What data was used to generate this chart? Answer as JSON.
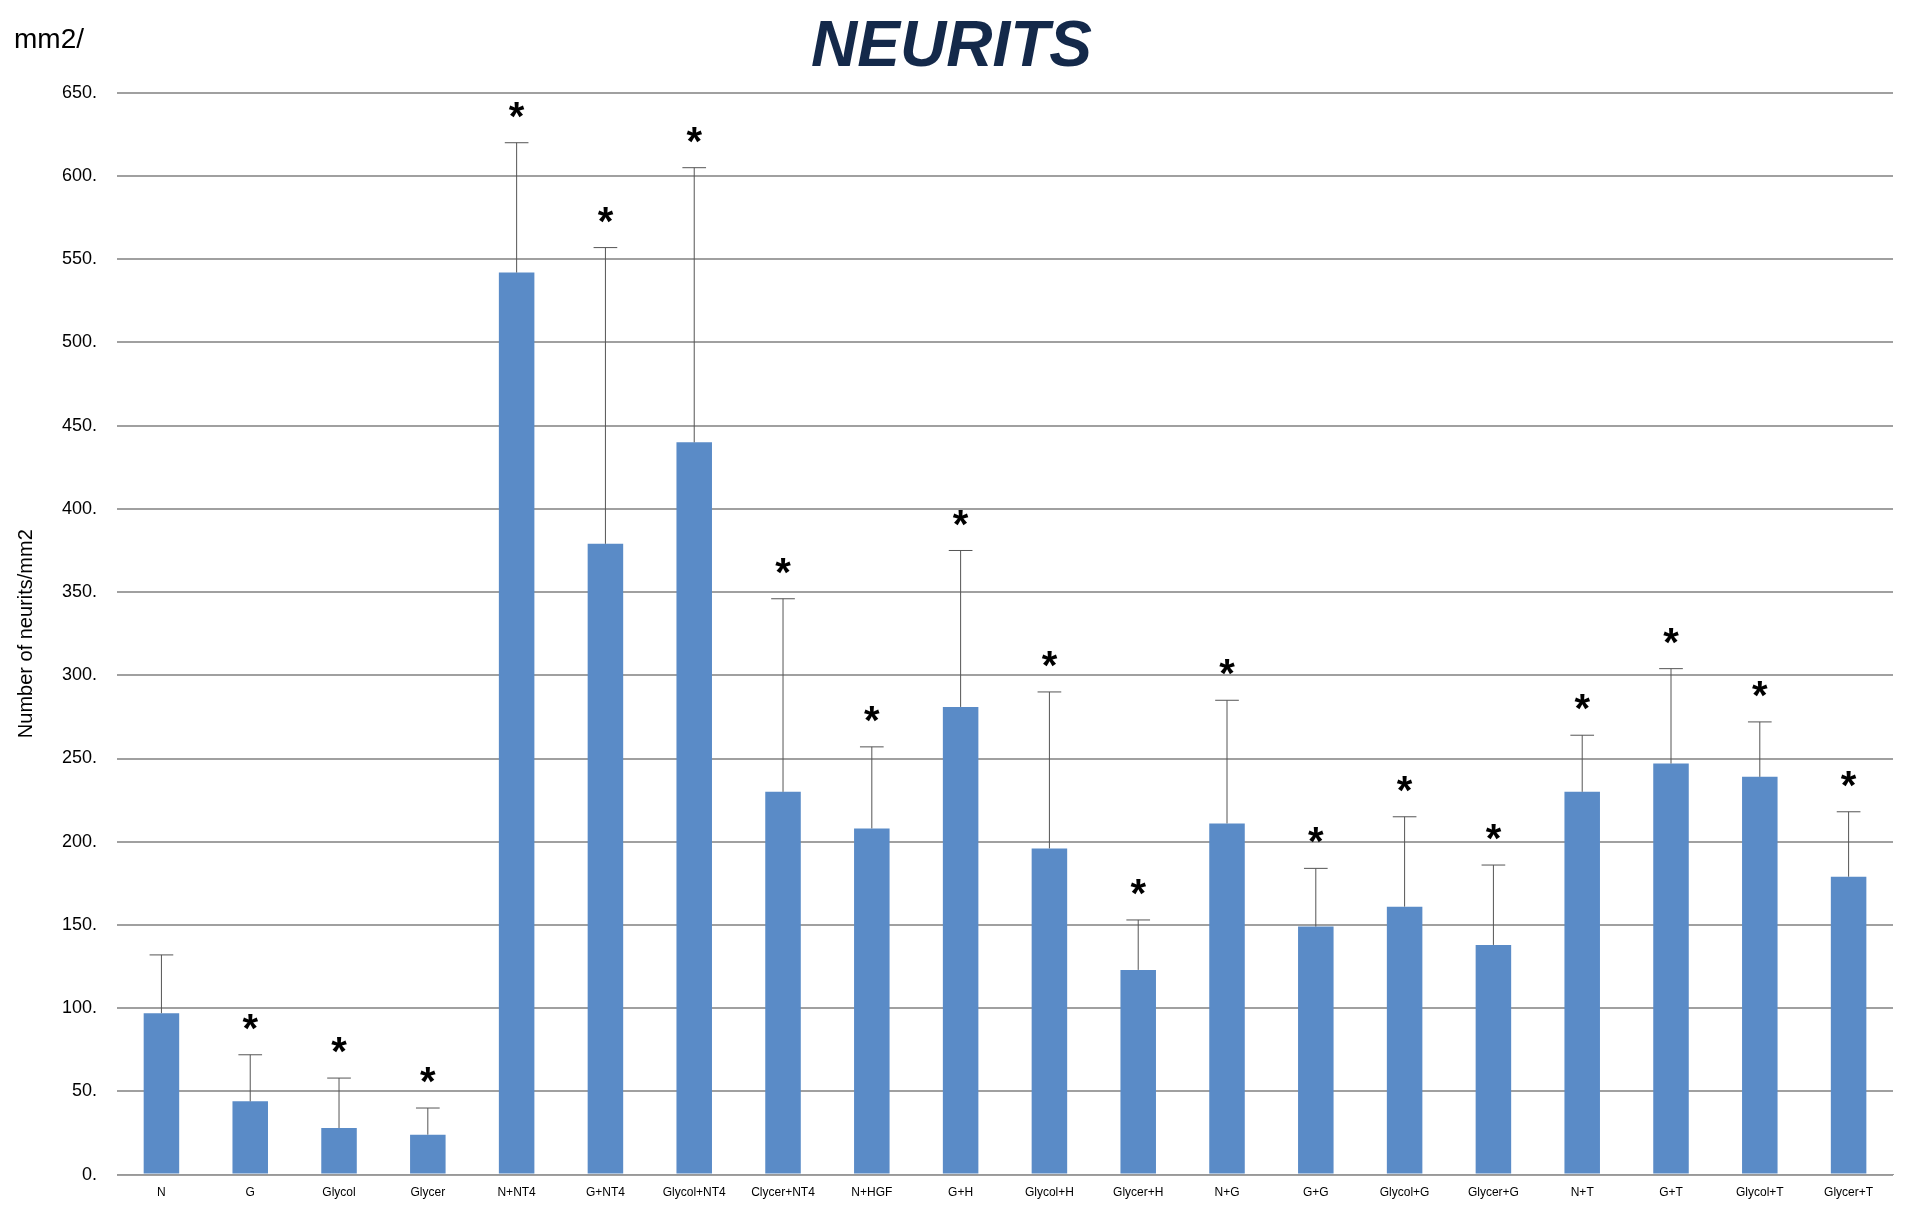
{
  "chart_data": {
    "type": "bar",
    "title": "NEURITS",
    "ylabel": "Number of neurits/mm2",
    "categories": [
      "N",
      "G",
      "Glycol",
      "Glycer",
      "N+NT4",
      "G+NT4",
      "Glycol+NT4",
      "Clycer+NT4",
      "N+HGF",
      "G+H",
      "Glycol+H",
      "Glycer+H",
      "N+G",
      "G+G",
      "Glycol+G",
      "Glycer+G",
      "N+T",
      "G+T",
      "Glycol+T",
      "Glycer+T"
    ],
    "values": [
      97,
      44,
      28,
      24,
      542,
      379,
      440,
      230,
      208,
      281,
      196,
      123,
      211,
      149,
      161,
      138,
      230,
      247,
      239,
      179
    ],
    "errors": [
      [
        97,
        132
      ],
      [
        44,
        72
      ],
      [
        28,
        58
      ],
      [
        24,
        40
      ],
      [
        542,
        620
      ],
      [
        379,
        557
      ],
      [
        440,
        605
      ],
      [
        230,
        346
      ],
      [
        208,
        257
      ],
      [
        281,
        375
      ],
      [
        196,
        290
      ],
      [
        123,
        153
      ],
      [
        211,
        285
      ],
      [
        149,
        184
      ],
      [
        161,
        215
      ],
      [
        138,
        186
      ],
      [
        230,
        264
      ],
      [
        247,
        304
      ],
      [
        239,
        272
      ],
      [
        179,
        218
      ]
    ],
    "color": "#5a8bc7",
    "ylim": [
      0,
      650
    ],
    "yticks": [
      {
        "value": 0,
        "label": "0."
      },
      {
        "value": 50,
        "label": "50."
      },
      {
        "value": 100,
        "label": "100."
      },
      {
        "value": 150,
        "label": "150."
      },
      {
        "value": 200,
        "label": "200."
      },
      {
        "value": 250,
        "label": "250."
      },
      {
        "value": 300,
        "label": "300."
      },
      {
        "value": 350,
        "label": "350."
      },
      {
        "value": 400,
        "label": "400."
      },
      {
        "value": 450,
        "label": "450."
      },
      {
        "value": 500,
        "label": "500."
      },
      {
        "value": 550,
        "label": "550."
      },
      {
        "value": 600,
        "label": "600."
      },
      {
        "value": 650,
        "label": "650."
      }
    ],
    "grid": "y",
    "legend": false,
    "annotations": [
      "mm2/",
      {
        "text": "*",
        "x": "G",
        "y": 72
      },
      {
        "text": "*",
        "x": "Glycol",
        "y": 58
      },
      {
        "text": "*",
        "x": "Glycer",
        "y": 40
      },
      {
        "text": "*",
        "x": "N+NT4",
        "y": 620
      },
      {
        "text": "*",
        "x": "G+NT4",
        "y": 557
      },
      {
        "text": "*",
        "x": "Glycol+NT4",
        "y": 605
      },
      {
        "text": "*",
        "x": "Clycer+NT4",
        "y": 346
      },
      {
        "text": "*",
        "x": "N+HGF",
        "y": 257
      },
      {
        "text": "*",
        "x": "G+H",
        "y": 375
      },
      {
        "text": "*",
        "x": "Glycol+H",
        "y": 290
      },
      {
        "text": "*",
        "x": "Glycer+H",
        "y": 153
      },
      {
        "text": "*",
        "x": "N+G",
        "y": 285
      },
      {
        "text": "*",
        "x": "G+G",
        "y": 184
      },
      {
        "text": "*",
        "x": "Glycol+G",
        "y": 215
      },
      {
        "text": "*",
        "x": "Glycer+G",
        "y": 186
      },
      {
        "text": "*",
        "x": "N+T",
        "y": 264
      },
      {
        "text": "*",
        "x": "G+T",
        "y": 304
      },
      {
        "text": "*",
        "x": "Glycol+T",
        "y": 272
      },
      {
        "text": "*",
        "x": "Glycer+T",
        "y": 218
      }
    ]
  }
}
